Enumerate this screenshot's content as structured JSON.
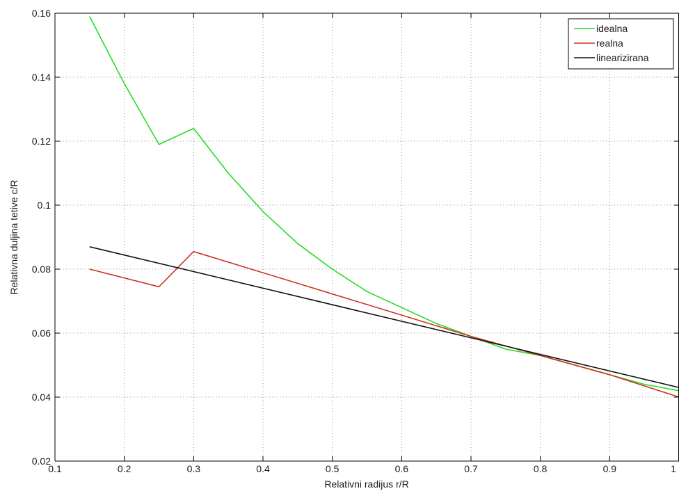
{
  "chart_data": {
    "type": "line",
    "title": "",
    "xlabel": "Relativni radijus r/R",
    "ylabel": "Relativna duljina tetive c/R",
    "xlim": [
      0.1,
      1
    ],
    "ylim": [
      0.02,
      0.16
    ],
    "xticks": [
      0.1,
      0.2,
      0.3,
      0.4,
      0.5,
      0.6,
      0.7,
      0.8,
      0.9,
      1
    ],
    "yticks": [
      0.02,
      0.04,
      0.06,
      0.08,
      0.1,
      0.12,
      0.14,
      0.16
    ],
    "xtick_labels": [
      "0.1",
      "0.2",
      "0.3",
      "0.4",
      "0.5",
      "0.6",
      "0.7",
      "0.8",
      "0.9",
      "1"
    ],
    "ytick_labels": [
      "0.02",
      "0.04",
      "0.06",
      "0.08",
      "0.1",
      "0.12",
      "0.14",
      "0.16"
    ],
    "grid": true,
    "legend_position": "top-right",
    "series": [
      {
        "name": "idealna",
        "color": "#22dd22",
        "x": [
          0.15,
          0.2,
          0.25,
          0.3,
          0.35,
          0.4,
          0.45,
          0.5,
          0.55,
          0.6,
          0.65,
          0.7,
          0.75,
          0.8,
          0.85,
          0.9,
          0.95,
          1.0
        ],
        "y": [
          0.159,
          0.138,
          0.119,
          0.124,
          0.11,
          0.098,
          0.088,
          0.08,
          0.073,
          0.068,
          0.063,
          0.059,
          0.055,
          0.053,
          0.05,
          0.047,
          0.044,
          0.042
        ]
      },
      {
        "name": "realna",
        "color": "#cc3322",
        "x": [
          0.15,
          0.25,
          0.3,
          0.7,
          0.8,
          0.9,
          1.0
        ],
        "y": [
          0.08,
          0.0745,
          0.0855,
          0.059,
          0.053,
          0.047,
          0.04
        ]
      },
      {
        "name": "linearizirana",
        "color": "#111111",
        "x": [
          0.15,
          1.0
        ],
        "y": [
          0.087,
          0.043
        ]
      }
    ]
  }
}
